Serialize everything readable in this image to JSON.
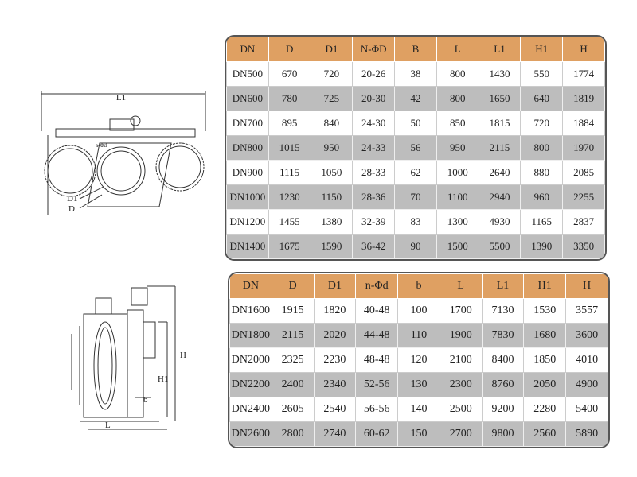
{
  "figure1": {
    "labels": [
      "L1",
      "a-Φd",
      "D1",
      "D"
    ]
  },
  "figure2": {
    "labels": [
      "H",
      "H1",
      "L",
      "b"
    ]
  },
  "table1": {
    "headers": [
      "DN",
      "D",
      "D1",
      "N-ΦD",
      "B",
      "L",
      "L1",
      "H1",
      "H"
    ],
    "rows": [
      [
        "DN500",
        "670",
        "720",
        "20-26",
        "38",
        "800",
        "1430",
        "550",
        "1774"
      ],
      [
        "DN600",
        "780",
        "725",
        "20-30",
        "42",
        "800",
        "1650",
        "640",
        "1819"
      ],
      [
        "DN700",
        "895",
        "840",
        "24-30",
        "50",
        "850",
        "1815",
        "720",
        "1884"
      ],
      [
        "DN800",
        "1015",
        "950",
        "24-33",
        "56",
        "950",
        "2115",
        "800",
        "1970"
      ],
      [
        "DN900",
        "1115",
        "1050",
        "28-33",
        "62",
        "1000",
        "2640",
        "880",
        "2085"
      ],
      [
        "DN1000",
        "1230",
        "1150",
        "28-36",
        "70",
        "1100",
        "2940",
        "960",
        "2255"
      ],
      [
        "DN1200",
        "1455",
        "1380",
        "32-39",
        "83",
        "1300",
        "4930",
        "1165",
        "2837"
      ],
      [
        "DN1400",
        "1675",
        "1590",
        "36-42",
        "90",
        "1500",
        "5500",
        "1390",
        "3350"
      ]
    ]
  },
  "table2": {
    "headers": [
      "DN",
      "D",
      "D1",
      "n-Φd",
      "b",
      "L",
      "L1",
      "H1",
      "H"
    ],
    "rows": [
      [
        "DN1600",
        "1915",
        "1820",
        "40-48",
        "100",
        "1700",
        "7130",
        "1530",
        "3557"
      ],
      [
        "DN1800",
        "2115",
        "2020",
        "44-48",
        "110",
        "1900",
        "7830",
        "1680",
        "3600"
      ],
      [
        "DN2000",
        "2325",
        "2230",
        "48-48",
        "120",
        "2100",
        "8400",
        "1850",
        "4010"
      ],
      [
        "DN2200",
        "2400",
        "2340",
        "52-56",
        "130",
        "2300",
        "8760",
        "2050",
        "4900"
      ],
      [
        "DN2400",
        "2605",
        "2540",
        "56-56",
        "140",
        "2500",
        "9200",
        "2280",
        "5400"
      ],
      [
        "DN2600",
        "2800",
        "2740",
        "60-62",
        "150",
        "2700",
        "9800",
        "2560",
        "5890"
      ]
    ]
  }
}
